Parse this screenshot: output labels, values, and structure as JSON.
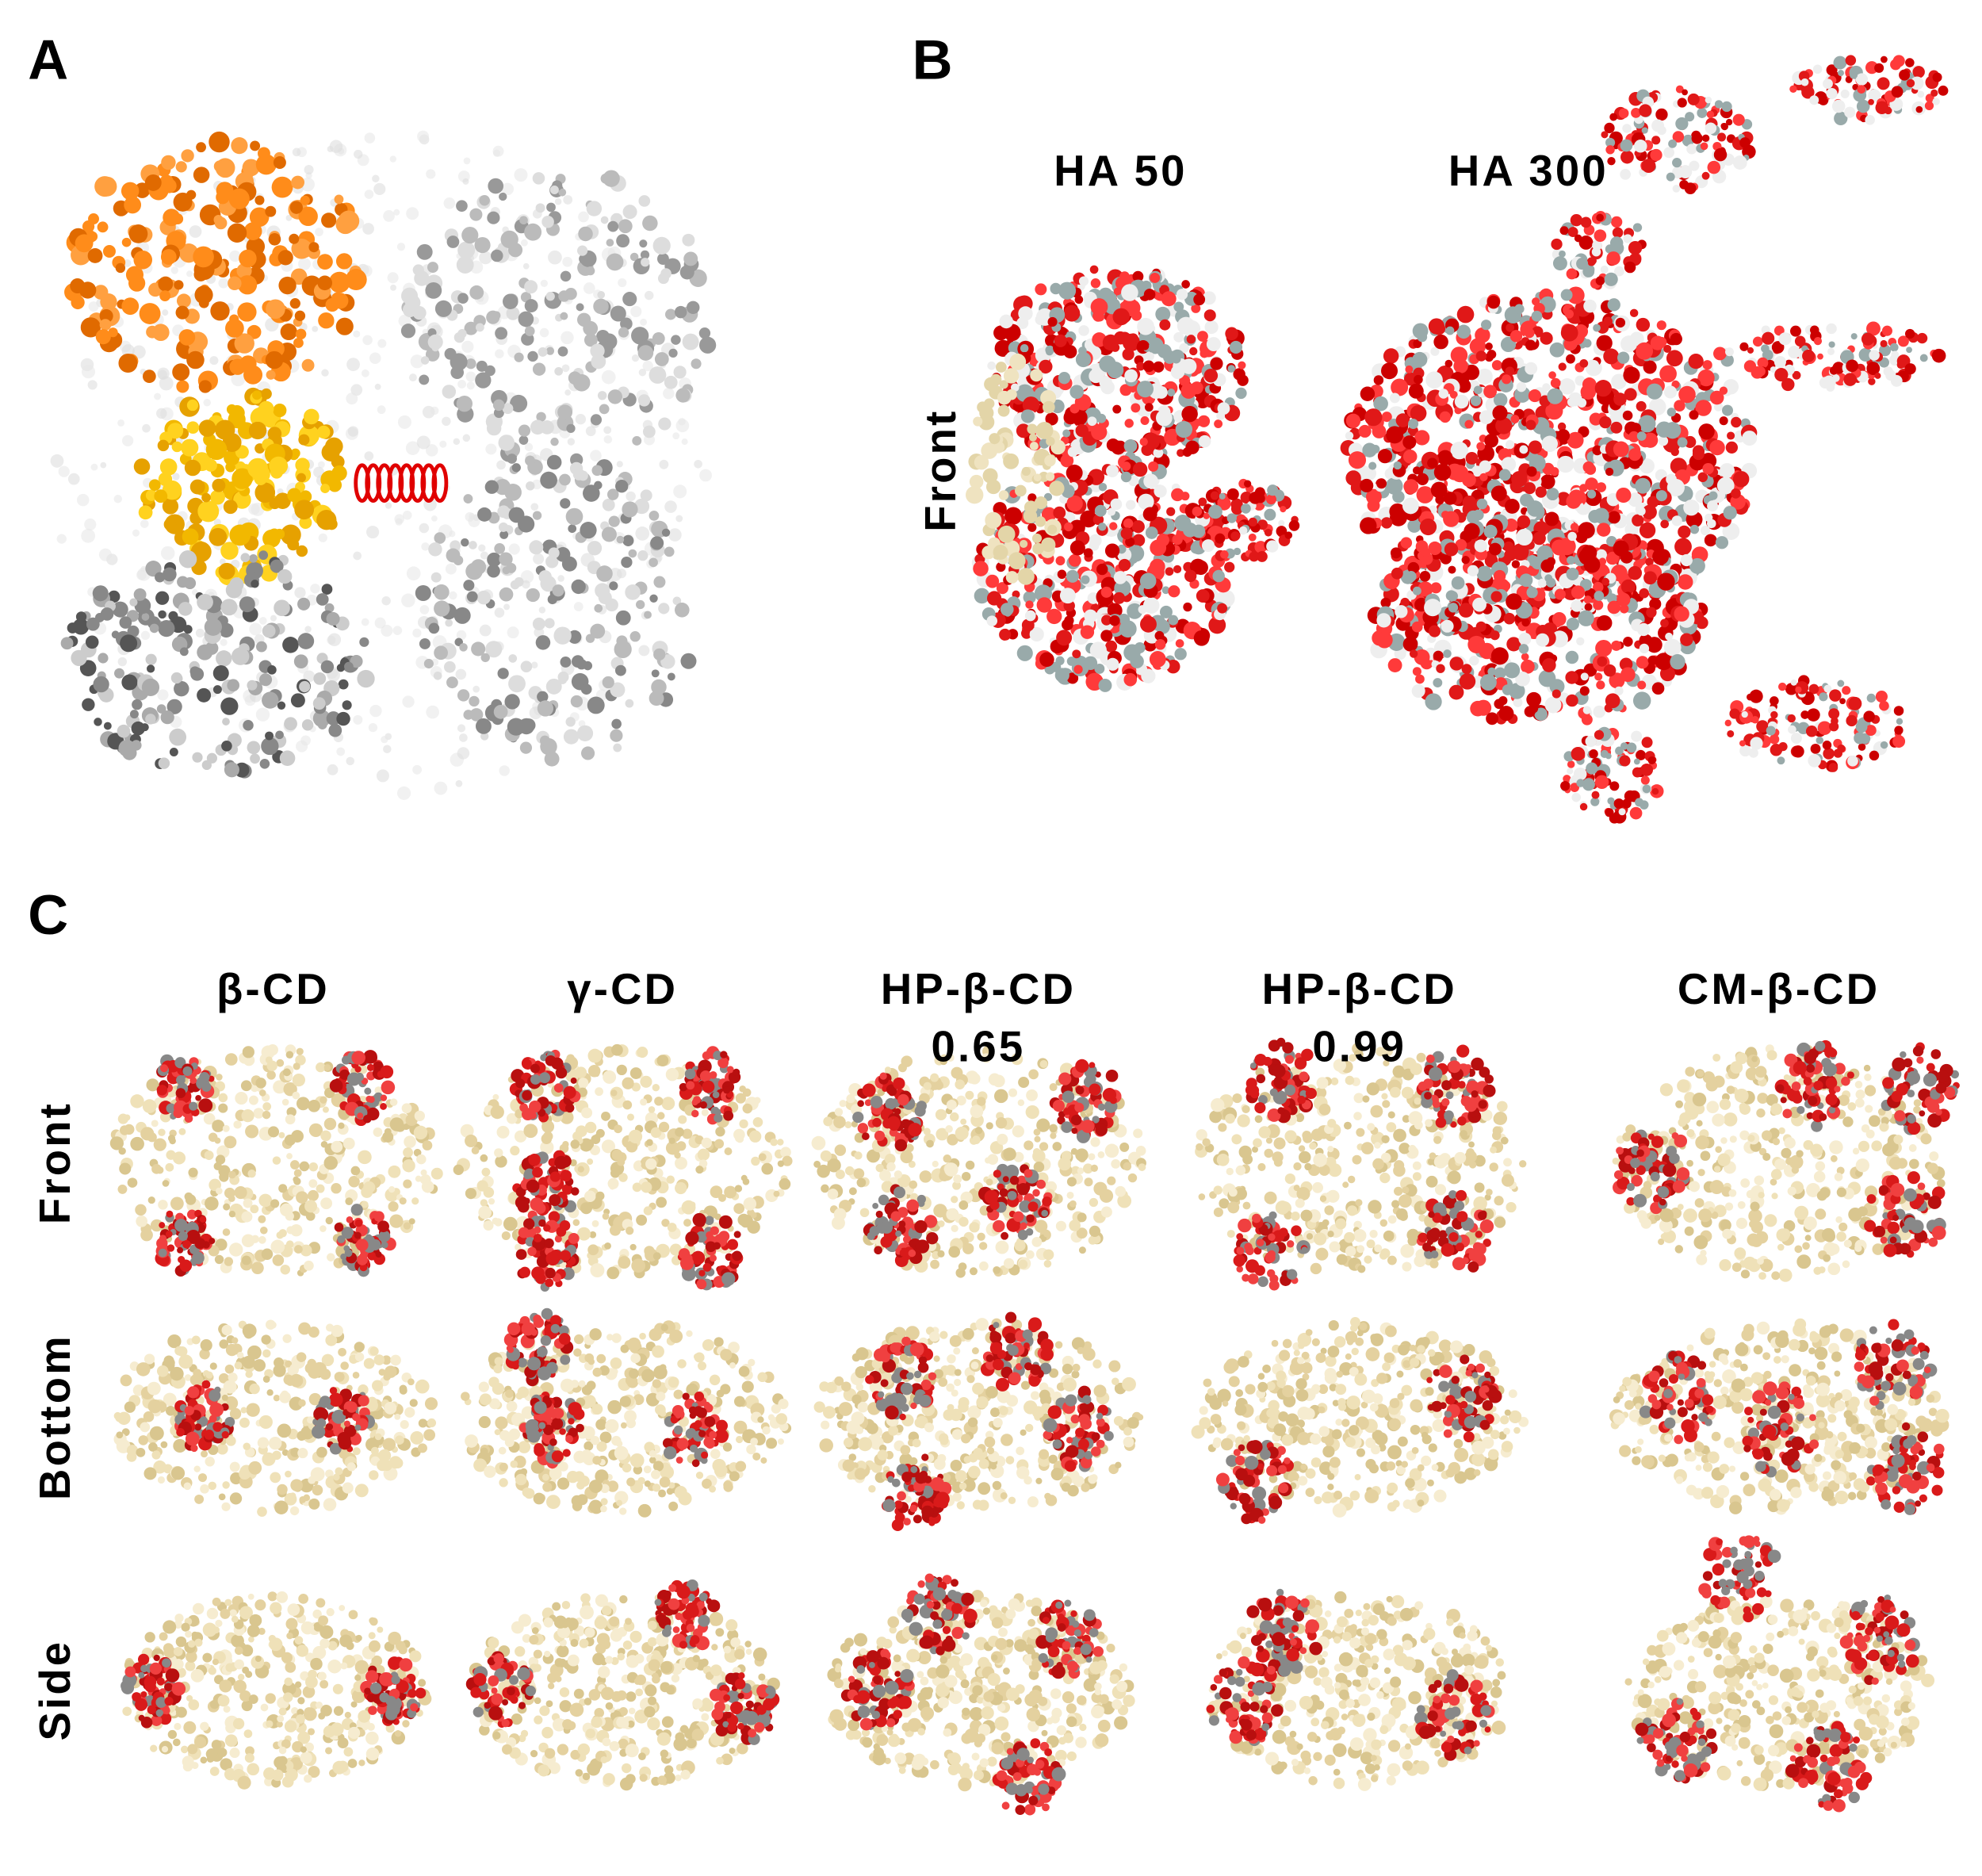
{
  "panel_a": {
    "label": "A"
  },
  "panel_b": {
    "label": "B",
    "titles": [
      "HA 50",
      "HA 300"
    ],
    "row_label": "Front"
  },
  "panel_c": {
    "label": "C",
    "columns": [
      [
        "β-CD"
      ],
      [
        "γ-CD"
      ],
      [
        "HP-β-CD",
        "0.65"
      ],
      [
        "HP-β-CD",
        "0.99"
      ],
      [
        "CM-β-CD"
      ]
    ],
    "rows": [
      "Front",
      "Bottom",
      "Side"
    ]
  }
}
